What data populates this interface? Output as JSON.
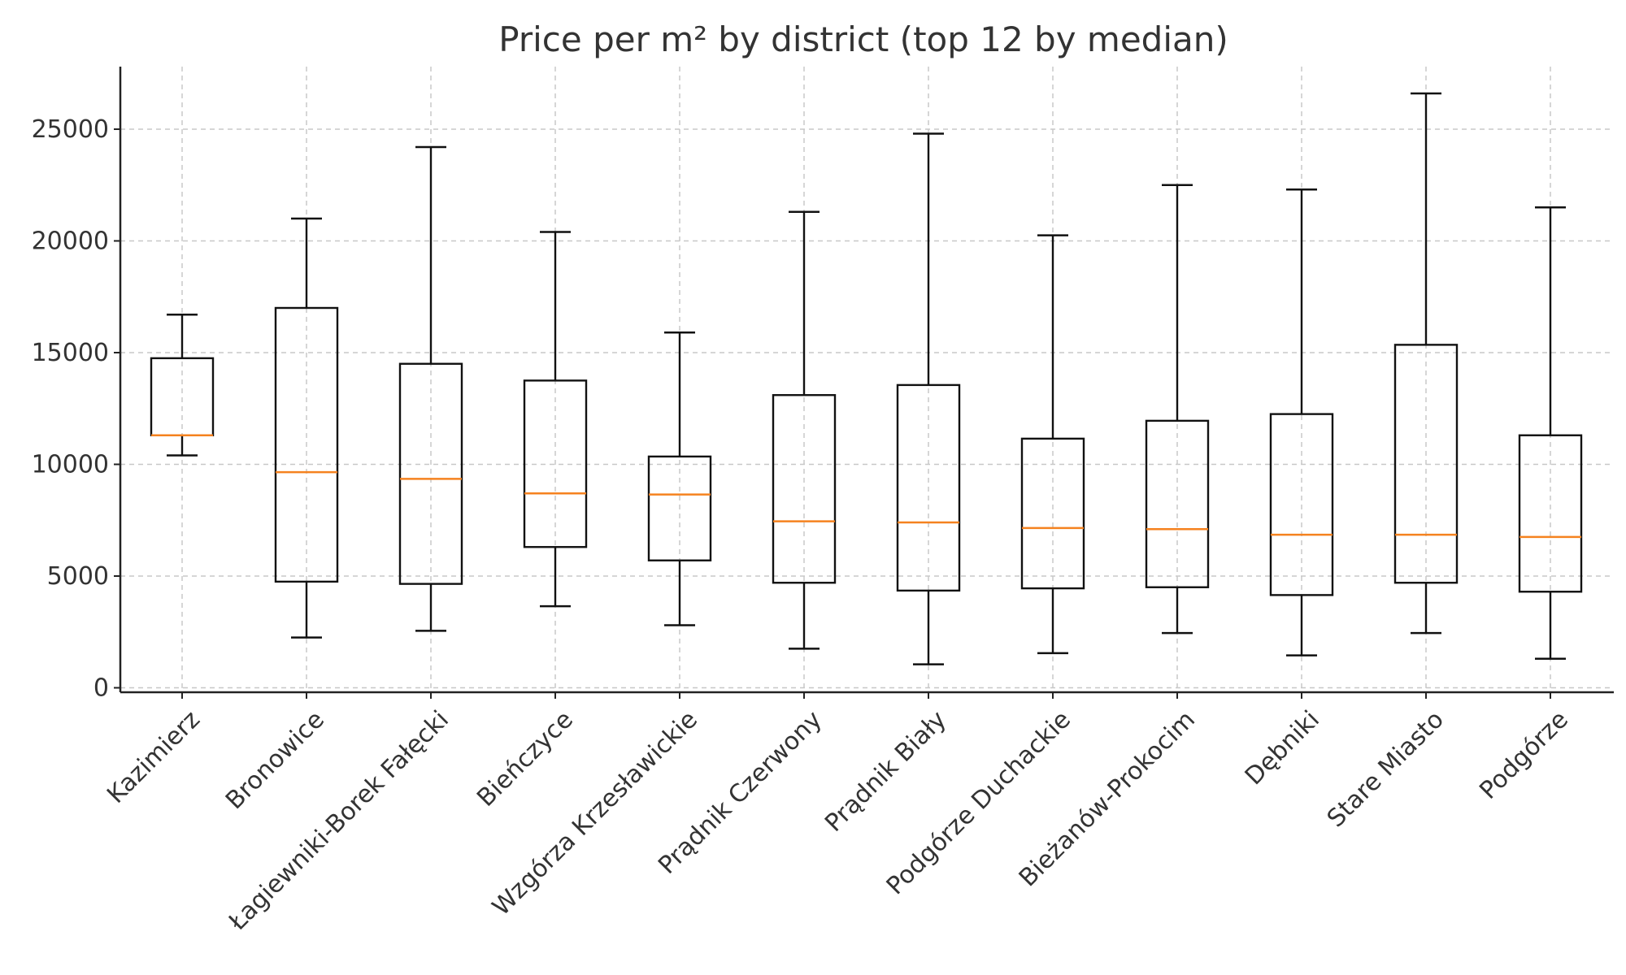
{
  "chart_data": {
    "type": "box",
    "title": "Price per m² by district (top 12 by median)",
    "xlabel": "",
    "ylabel": "",
    "ylim": [
      -200,
      27800
    ],
    "yticks": [
      0,
      5000,
      10000,
      15000,
      20000,
      25000
    ],
    "grid": true,
    "categories": [
      "Kazimierz",
      "Bronowice",
      "Łagiewniki-Borek Fałęcki",
      "Bieńczyce",
      "Wzgórza Krzesławickie",
      "Prądnik Czerwony",
      "Prądnik Biały",
      "Podgórze Duchackie",
      "Bieżanów-Prokocim",
      "Dębniki",
      "Stare Miasto",
      "Podgórze"
    ],
    "boxes": [
      {
        "whisker_low": 10400,
        "q1": 11300,
        "median": 11300,
        "q3": 14750,
        "whisker_high": 16700
      },
      {
        "whisker_low": 2250,
        "q1": 4750,
        "median": 9650,
        "q3": 17000,
        "whisker_high": 21000
      },
      {
        "whisker_low": 2550,
        "q1": 4650,
        "median": 9350,
        "q3": 14500,
        "whisker_high": 24200
      },
      {
        "whisker_low": 3650,
        "q1": 6300,
        "median": 8700,
        "q3": 13750,
        "whisker_high": 20400
      },
      {
        "whisker_low": 2800,
        "q1": 5700,
        "median": 8650,
        "q3": 10350,
        "whisker_high": 15900
      },
      {
        "whisker_low": 1750,
        "q1": 4700,
        "median": 7450,
        "q3": 13100,
        "whisker_high": 21300
      },
      {
        "whisker_low": 1050,
        "q1": 4350,
        "median": 7400,
        "q3": 13550,
        "whisker_high": 24800
      },
      {
        "whisker_low": 1550,
        "q1": 4450,
        "median": 7150,
        "q3": 11150,
        "whisker_high": 20250
      },
      {
        "whisker_low": 2450,
        "q1": 4500,
        "median": 7100,
        "q3": 11950,
        "whisker_high": 22500
      },
      {
        "whisker_low": 1450,
        "q1": 4150,
        "median": 6850,
        "q3": 12250,
        "whisker_high": 22300
      },
      {
        "whisker_low": 2450,
        "q1": 4700,
        "median": 6850,
        "q3": 15350,
        "whisker_high": 26600
      },
      {
        "whisker_low": 1300,
        "q1": 4300,
        "median": 6750,
        "q3": 11300,
        "whisker_high": 21500
      }
    ],
    "colors": {
      "box": "#111111",
      "median": "#f5821f",
      "grid": "#c8c8c8"
    }
  }
}
